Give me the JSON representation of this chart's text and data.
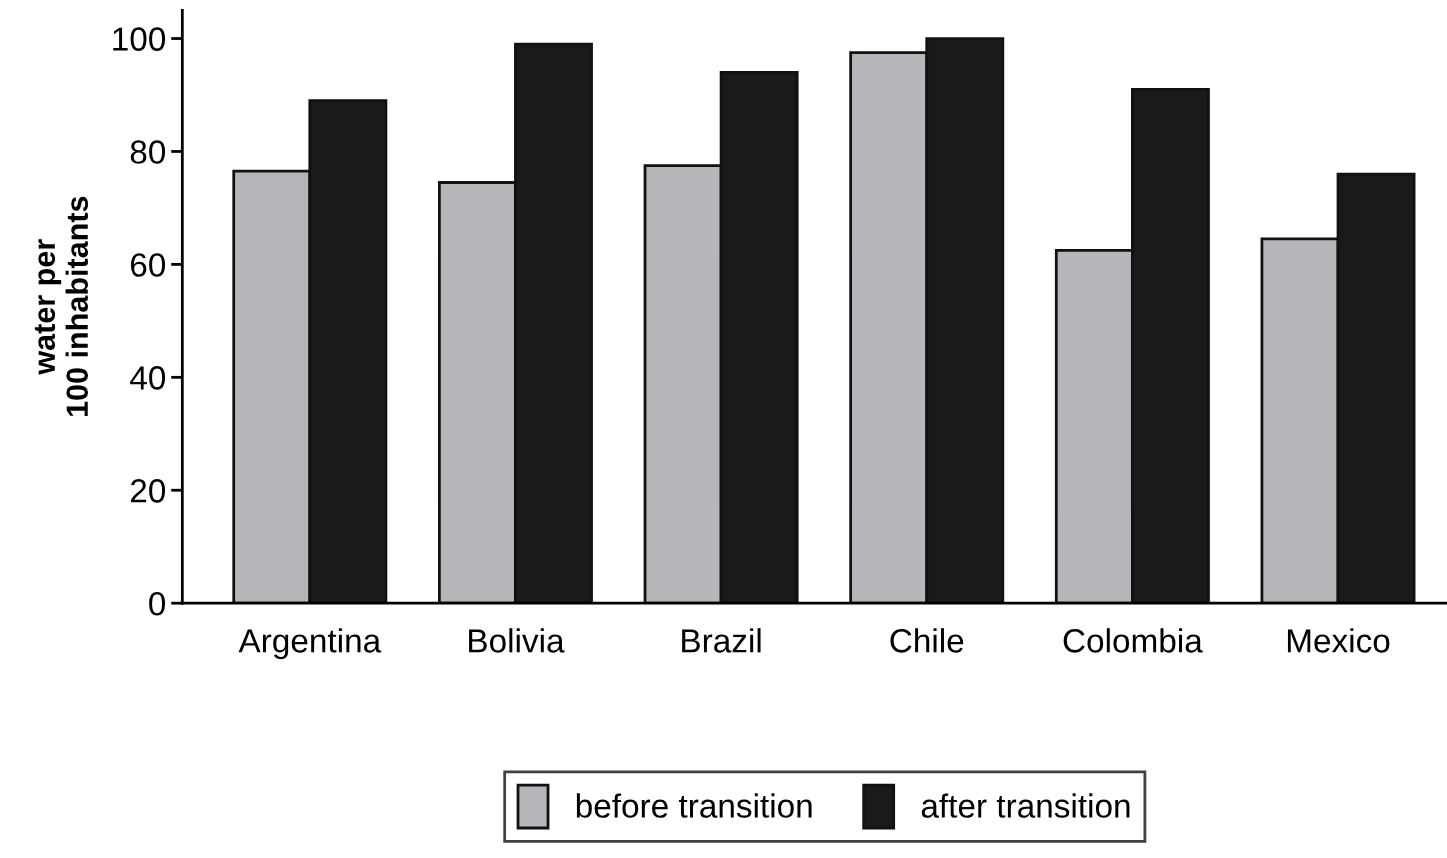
{
  "chart_data": {
    "type": "bar",
    "ylabel": "water per\n100 inhabitants",
    "categories": [
      "Argentina",
      "Bolivia",
      "Brazil",
      "Chile",
      "Colombia",
      "Mexico"
    ],
    "series": [
      {
        "name": "before transition",
        "color": "#b4b6b9",
        "values": [
          76.5,
          74.5,
          77.5,
          97.5,
          62.5,
          64.5
        ]
      },
      {
        "name": "after transition",
        "color": "#1a1a1a",
        "values": [
          89,
          99,
          94,
          100,
          91,
          76
        ]
      }
    ],
    "ylim": [
      0,
      105
    ],
    "yticks": [
      0,
      20,
      40,
      60,
      80,
      100
    ],
    "grid": false,
    "legend": "bottom"
  }
}
